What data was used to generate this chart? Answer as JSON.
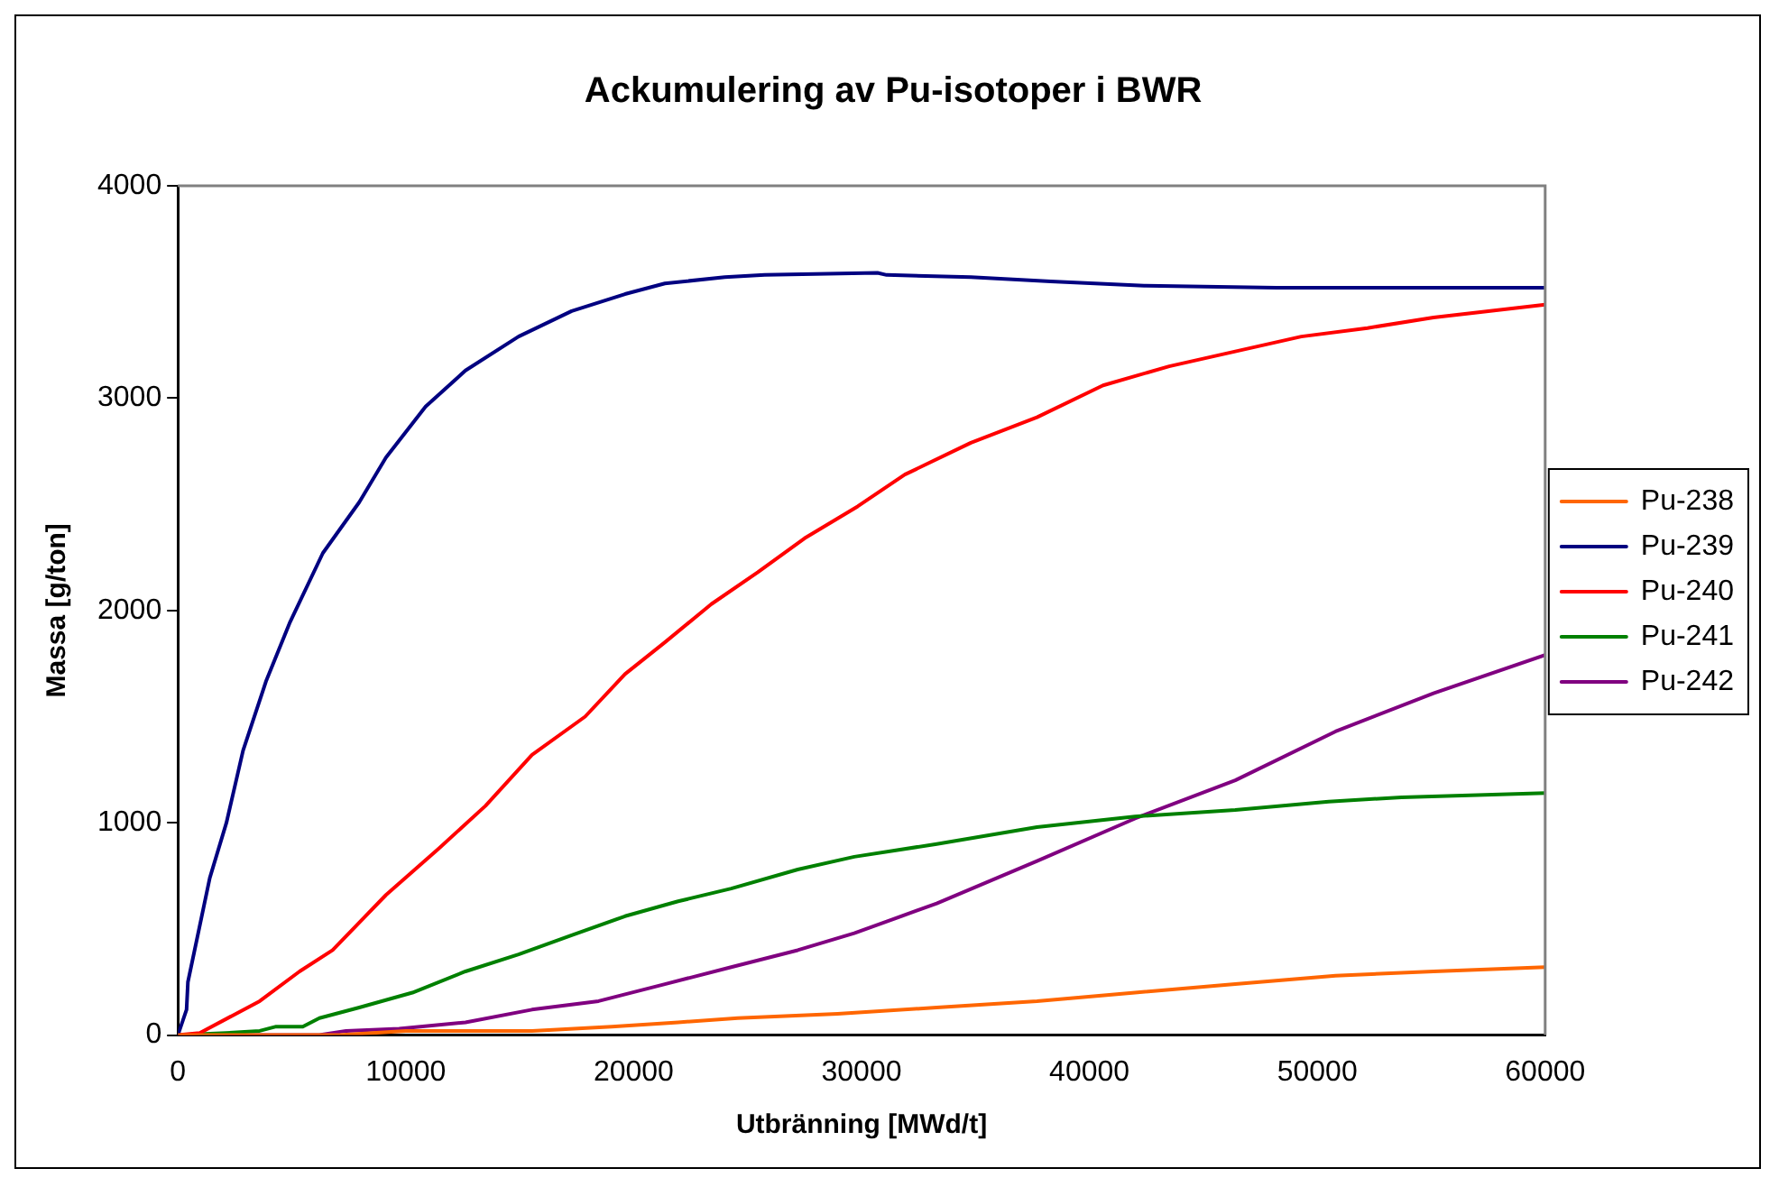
{
  "chart_data": {
    "type": "line",
    "title": "Ackumulering av Pu-isotoper i BWR",
    "xlabel": "Utbränning [MWd/t]",
    "ylabel": "Massa [g/ton]",
    "xlim": [
      0,
      60000
    ],
    "xticks": [
      0,
      10000,
      20000,
      30000,
      40000,
      50000,
      60000
    ],
    "ylim": [
      0,
      4000
    ],
    "yticks": [
      0,
      1000,
      2000,
      3000,
      4000
    ],
    "grid": false,
    "legend": "right",
    "marker": "none",
    "line_style": "solid",
    "series": [
      {
        "name": "Pu-238",
        "color": "#ff6600",
        "x": [
          0,
          7090,
          10000,
          15540,
          19040,
          21950,
          24570,
          28950,
          33300,
          37700,
          42000,
          46400,
          50800,
          55100,
          60000
        ],
        "values": [
          0,
          0,
          20,
          20,
          40,
          60,
          80,
          100,
          130,
          160,
          200,
          240,
          280,
          300,
          320
        ]
      },
      {
        "name": "Pu-239",
        "color": "#000080",
        "x": [
          0,
          380,
          440,
          1400,
          2130,
          2860,
          3880,
          4900,
          6360,
          7960,
          9130,
          10870,
          12620,
          14950,
          17280,
          19620,
          21370,
          24000,
          25750,
          30700,
          31100,
          34800,
          38300,
          42400,
          48200,
          60000
        ],
        "values": [
          0,
          120,
          250,
          740,
          1000,
          1340,
          1670,
          1940,
          2270,
          2510,
          2720,
          2960,
          3130,
          3290,
          3410,
          3490,
          3540,
          3570,
          3580,
          3590,
          3580,
          3570,
          3550,
          3530,
          3520,
          3520
        ]
      },
      {
        "name": "Pu-240",
        "color": "#ff0000",
        "x": [
          0,
          960,
          3590,
          5340,
          6790,
          9130,
          11460,
          13500,
          15540,
          17870,
          19620,
          21370,
          23410,
          25450,
          27500,
          29830,
          31900,
          34800,
          37700,
          40600,
          43500,
          46400,
          49300,
          52200,
          55100,
          60000
        ],
        "values": [
          0,
          10,
          160,
          300,
          400,
          660,
          880,
          1080,
          1320,
          1500,
          1700,
          1850,
          2030,
          2180,
          2340,
          2490,
          2640,
          2790,
          2910,
          3060,
          3150,
          3220,
          3290,
          3330,
          3380,
          3440
        ]
      },
      {
        "name": "Pu-241",
        "color": "#008000",
        "x": [
          0,
          2130,
          3590,
          4310,
          5480,
          6210,
          7960,
          10290,
          12620,
          14950,
          17280,
          19620,
          21950,
          24280,
          27200,
          29680,
          33300,
          37700,
          42000,
          46400,
          50500,
          53700,
          60000
        ],
        "values": [
          0,
          10,
          20,
          40,
          40,
          80,
          130,
          200,
          300,
          380,
          470,
          560,
          630,
          690,
          780,
          840,
          900,
          980,
          1030,
          1060,
          1100,
          1120,
          1140
        ]
      },
      {
        "name": "Pu-242",
        "color": "#800080",
        "x": [
          0,
          6210,
          7380,
          9710,
          12620,
          15540,
          18460,
          21370,
          24280,
          27200,
          29680,
          33300,
          37700,
          42000,
          46400,
          50800,
          55100,
          60000
        ],
        "values": [
          0,
          0,
          20,
          30,
          60,
          120,
          160,
          240,
          320,
          400,
          480,
          620,
          820,
          1020,
          1200,
          1430,
          1610,
          1790
        ]
      }
    ]
  }
}
